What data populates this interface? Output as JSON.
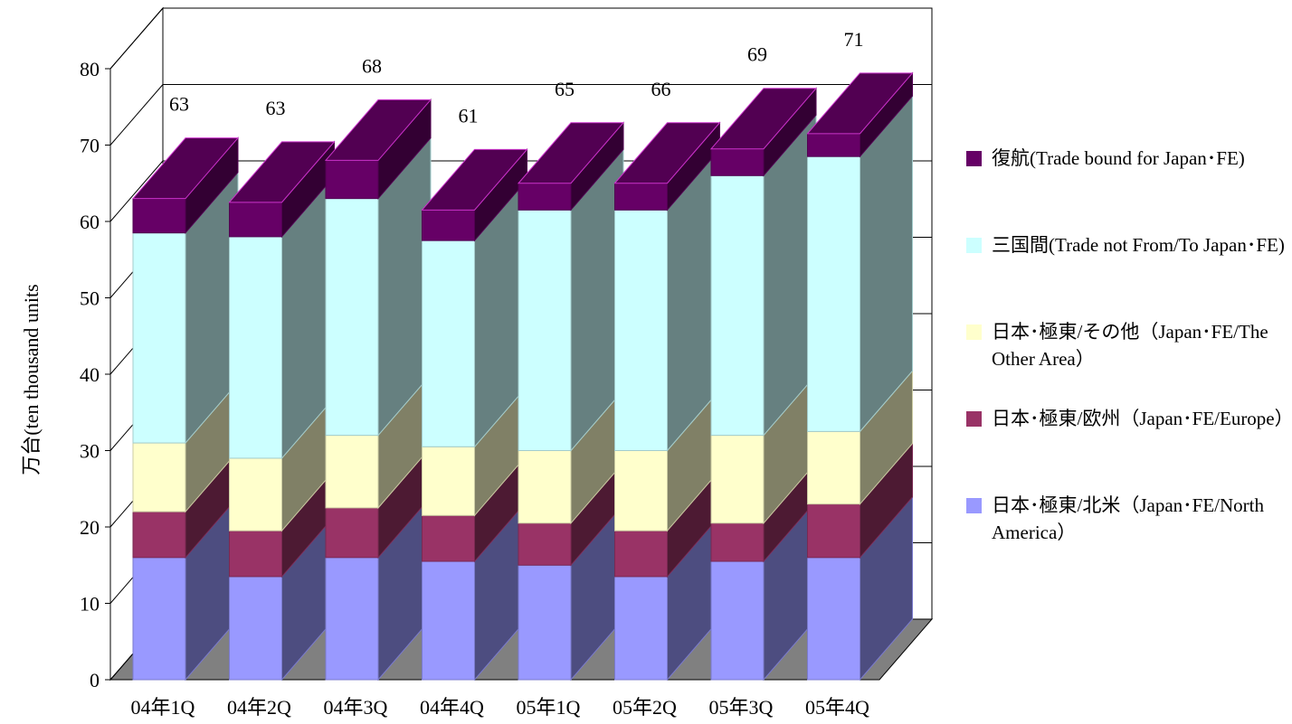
{
  "chart_data": {
    "type": "bar",
    "stacked": true,
    "three_d": true,
    "categories": [
      "04年1Q",
      "04年2Q",
      "04年3Q",
      "04年4Q",
      "05年1Q",
      "05年2Q",
      "05年3Q",
      "05年4Q"
    ],
    "ylabel": "万台(ten thousand units",
    "ylim": [
      0,
      80
    ],
    "yticks": [
      "0",
      "10",
      "20",
      "30",
      "40",
      "50",
      "60",
      "70",
      "80"
    ],
    "grid": true,
    "legend_position": "right",
    "totals": [
      "63",
      "63",
      "68",
      "61",
      "65",
      "66",
      "69",
      "71"
    ],
    "series": [
      {
        "name": "日本･極東/北米（Japan･FE/North America）",
        "color": "#9999ff",
        "values": [
          16,
          13.5,
          16,
          15.5,
          15,
          13.5,
          15.5,
          16
        ]
      },
      {
        "name": "日本･極東/欧州（Japan･FE/Europe）",
        "color": "#993366",
        "values": [
          6,
          6,
          6.5,
          6,
          5.5,
          6,
          5,
          7
        ]
      },
      {
        "name": "日本･極東/その他（Japan･FE/The Other Area）",
        "color": "#ffffcc",
        "values": [
          9,
          9.5,
          9.5,
          9,
          9.5,
          10.5,
          11.5,
          9.5
        ]
      },
      {
        "name": "三国間(Trade not From/To Japan･FE)",
        "color": "#ccffff",
        "values": [
          27.5,
          29,
          31,
          27,
          31.5,
          31.5,
          34,
          36
        ]
      },
      {
        "name": "復航(Trade bound for Japan･FE)",
        "color": "#660066",
        "values": [
          4.5,
          4.5,
          5,
          4,
          3.5,
          3.5,
          3.5,
          3
        ]
      }
    ]
  }
}
